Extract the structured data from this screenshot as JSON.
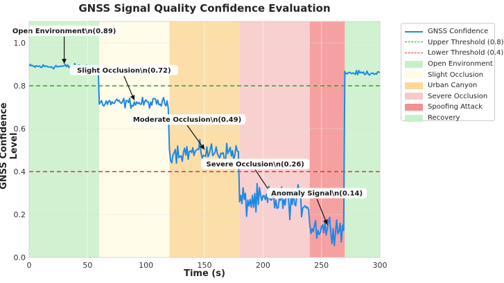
{
  "chart_data": {
    "type": "line",
    "title": "GNSS Signal Quality Confidence Evaluation",
    "xlabel": "Time (s)",
    "ylabel": "GNSS Confidence Level",
    "xlim": [
      0,
      300
    ],
    "ylim": [
      0.0,
      1.1
    ],
    "xticks": [
      0,
      50,
      100,
      150,
      200,
      250,
      300
    ],
    "yticks": [
      0.0,
      0.2,
      0.4,
      0.6,
      0.8,
      1.0
    ],
    "xtick_labels": [
      "0",
      "50",
      "100",
      "150",
      "200",
      "250",
      "300"
    ],
    "ytick_labels": [
      "0.0",
      "0.2",
      "0.4",
      "0.6",
      "0.8",
      "1.0"
    ],
    "grid": true,
    "legend_position": "outside-right-top",
    "series": [
      {
        "name": "GNSS Confidence",
        "color": "#1e88e5",
        "segments": [
          {
            "start": 0,
            "end": 60,
            "mean": 0.89,
            "noise": 0.006
          },
          {
            "start": 60,
            "end": 120,
            "mean": 0.72,
            "noise": 0.012
          },
          {
            "start": 120,
            "end": 180,
            "mean": 0.49,
            "noise": 0.022
          },
          {
            "start": 180,
            "end": 240,
            "mean": 0.26,
            "noise": 0.035
          },
          {
            "start": 240,
            "end": 270,
            "mean": 0.14,
            "noise": 0.03
          },
          {
            "start": 270,
            "end": 300,
            "mean": 0.86,
            "noise": 0.005
          }
        ]
      }
    ],
    "thresholds": [
      {
        "name": "Upper Threshold (0.8)",
        "value": 0.8,
        "color": "#2ca02c"
      },
      {
        "name": "Lower Threshold (0.4)",
        "value": 0.4,
        "color": "#e03030"
      }
    ],
    "regions": [
      {
        "name": "Open Environment",
        "start": 0,
        "end": 60,
        "color": "#c8f0c8"
      },
      {
        "name": "Slight Occlusion",
        "start": 60,
        "end": 120,
        "color": "#fffbe6"
      },
      {
        "name": "Urban Canyon",
        "start": 120,
        "end": 180,
        "color": "#fbd89a"
      },
      {
        "name": "Severe Occlusion",
        "start": 180,
        "end": 240,
        "color": "#f8c8c8"
      },
      {
        "name": "Spoofing Attack",
        "start": 240,
        "end": 270,
        "color": "#f59090"
      },
      {
        "name": "Recovery",
        "start": 270,
        "end": 300,
        "color": "#c8f0c8"
      }
    ],
    "annotations": [
      {
        "text": "Open Environment\\n(0.89)",
        "x": 30,
        "y": 0.89
      },
      {
        "text": "Slight Occlusion\\n(0.72)",
        "x": 90,
        "y": 0.72
      },
      {
        "text": "Moderate Occlusion\\n(0.49)",
        "x": 150,
        "y": 0.49
      },
      {
        "text": "Severe Occlusion\\n(0.26)",
        "x": 210,
        "y": 0.26
      },
      {
        "text": "Anomaly Signal\\n(0.14)",
        "x": 255,
        "y": 0.14
      }
    ]
  }
}
